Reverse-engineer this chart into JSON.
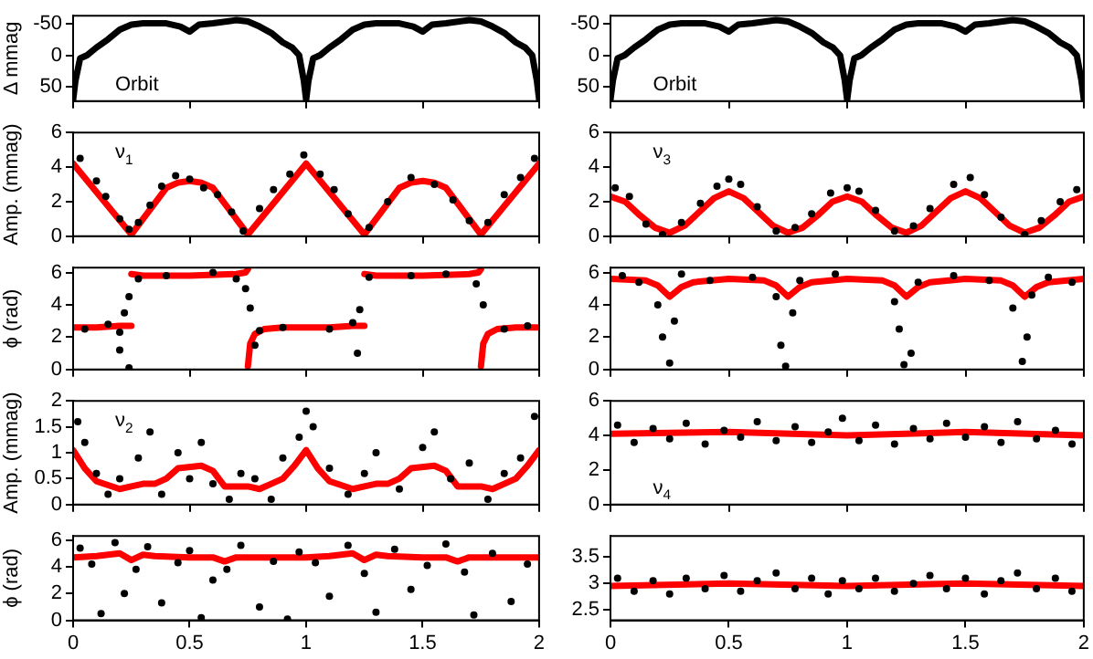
{
  "chart_data": [
    {
      "type": "line",
      "ylabel": "Δ mmag",
      "annotations": [
        "Orbit"
      ],
      "xlim": [
        0,
        2
      ],
      "xticks": [
        0,
        0.5,
        1,
        1.5,
        2
      ],
      "ylim": [
        72,
        -62
      ],
      "yticks": [
        -50,
        0,
        50
      ],
      "tick_labels": "y",
      "series": [
        {
          "color": "#000000",
          "x": [
            0,
            0.01,
            0.03,
            0.06,
            0.1,
            0.15,
            0.2,
            0.25,
            0.3,
            0.4,
            0.46,
            0.5,
            0.54,
            0.6,
            0.7,
            0.75,
            0.8,
            0.85,
            0.9,
            0.94,
            0.97,
            0.99,
            1,
            1.01,
            1.03,
            1.06,
            1.1,
            1.15,
            1.2,
            1.25,
            1.3,
            1.4,
            1.46,
            1.5,
            1.54,
            1.6,
            1.7,
            1.75,
            1.8,
            1.85,
            1.9,
            1.94,
            1.97,
            1.99,
            2
          ],
          "values": [
            70,
            40,
            5,
            0,
            -12,
            -25,
            -40,
            -48,
            -50,
            -50,
            -45,
            -37,
            -48,
            -50,
            -55,
            -53,
            -45,
            -35,
            -20,
            -12,
            0,
            40,
            70,
            40,
            5,
            0,
            -12,
            -25,
            -40,
            -48,
            -50,
            -50,
            -45,
            -37,
            -48,
            -50,
            -55,
            -53,
            -45,
            -35,
            -20,
            -12,
            0,
            40,
            70
          ]
        }
      ]
    },
    {
      "type": "line",
      "annotations": [
        "Orbit"
      ],
      "xlim": [
        0,
        2
      ],
      "xticks": [
        0,
        0.5,
        1,
        1.5,
        2
      ],
      "ylim": [
        72,
        -62
      ],
      "yticks": [
        -50,
        0,
        50
      ],
      "tick_labels": "y",
      "series": [
        {
          "color": "#000000",
          "x": [
            0,
            0.01,
            0.03,
            0.06,
            0.1,
            0.15,
            0.2,
            0.25,
            0.3,
            0.4,
            0.46,
            0.5,
            0.54,
            0.6,
            0.7,
            0.75,
            0.8,
            0.85,
            0.9,
            0.94,
            0.97,
            0.99,
            1,
            1.01,
            1.03,
            1.06,
            1.1,
            1.15,
            1.2,
            1.25,
            1.3,
            1.4,
            1.46,
            1.5,
            1.54,
            1.6,
            1.7,
            1.75,
            1.8,
            1.85,
            1.9,
            1.94,
            1.97,
            1.99,
            2
          ],
          "values": [
            70,
            40,
            5,
            0,
            -12,
            -25,
            -40,
            -48,
            -50,
            -50,
            -45,
            -37,
            -48,
            -50,
            -55,
            -53,
            -45,
            -35,
            -20,
            -12,
            0,
            40,
            70,
            40,
            5,
            0,
            -12,
            -25,
            -40,
            -48,
            -50,
            -50,
            -45,
            -37,
            -48,
            -50,
            -55,
            -53,
            -45,
            -35,
            -20,
            -12,
            0,
            40,
            70
          ]
        }
      ]
    },
    {
      "type": "line",
      "ylabel": "Amp. (mmag)",
      "annotations": [
        "ν$_{1}$"
      ],
      "xlim": [
        0,
        2
      ],
      "xticks": [
        0,
        0.5,
        1,
        1.5,
        2
      ],
      "ylim": [
        0,
        6
      ],
      "yticks": [
        0,
        2,
        4,
        6
      ],
      "tick_labels": "y",
      "series": [
        {
          "type": "scatter",
          "color": "#000000",
          "x": [
            0.03,
            0.1,
            0.14,
            0.2,
            0.24,
            0.28,
            0.33,
            0.38,
            0.44,
            0.5,
            0.56,
            0.62,
            0.68,
            0.73,
            0.8,
            0.86,
            0.93,
            0.99,
            1.06,
            1.12,
            1.18,
            1.27,
            1.35,
            1.45,
            1.55,
            1.63,
            1.7,
            1.78,
            1.85,
            1.92,
            1.98
          ],
          "values": [
            4.5,
            3.2,
            2.3,
            1.0,
            0.4,
            0.8,
            1.8,
            2.9,
            3.5,
            3.3,
            2.8,
            2.4,
            1.4,
            0.3,
            1.6,
            2.7,
            3.6,
            4.7,
            3.6,
            2.7,
            1.3,
            0.5,
            2.0,
            3.4,
            3.0,
            2.1,
            0.9,
            0.8,
            2.4,
            3.4,
            4.5
          ]
        },
        {
          "color": "#ff0000",
          "x": [
            0,
            0.25,
            0.4,
            0.45,
            0.5,
            0.55,
            0.6,
            0.75,
            1,
            1.25,
            1.4,
            1.45,
            1.5,
            1.55,
            1.6,
            1.75,
            2
          ],
          "values": [
            4.2,
            0.1,
            2.8,
            3.1,
            3.2,
            3.1,
            2.8,
            0.1,
            4.2,
            0.1,
            2.8,
            3.1,
            3.2,
            3.1,
            2.8,
            0.1,
            4.2
          ]
        }
      ]
    },
    {
      "type": "line",
      "annotations": [
        "ν$_{3}$"
      ],
      "xlim": [
        0,
        2
      ],
      "xticks": [
        0,
        0.5,
        1,
        1.5,
        2
      ],
      "ylim": [
        0,
        6
      ],
      "yticks": [
        0,
        2,
        4,
        6
      ],
      "tick_labels": "y",
      "series": [
        {
          "type": "scatter",
          "color": "#000000",
          "x": [
            0.02,
            0.08,
            0.15,
            0.22,
            0.3,
            0.38,
            0.45,
            0.5,
            0.55,
            0.62,
            0.7,
            0.78,
            0.85,
            0.93,
            1.0,
            1.05,
            1.12,
            1.2,
            1.28,
            1.35,
            1.45,
            1.52,
            1.58,
            1.65,
            1.75,
            1.82,
            1.9,
            1.97
          ],
          "values": [
            2.8,
            2.3,
            0.7,
            0.1,
            0.8,
            1.9,
            2.9,
            3.3,
            3.0,
            1.7,
            0.3,
            0.5,
            1.3,
            2.5,
            2.8,
            2.6,
            1.5,
            0.3,
            0.6,
            1.6,
            3.0,
            3.4,
            2.4,
            1.1,
            0.1,
            0.9,
            2.0,
            2.7
          ]
        },
        {
          "color": "#ff0000",
          "x": [
            0,
            0.0625,
            0.125,
            0.1875,
            0.25,
            0.3125,
            0.375,
            0.4375,
            0.5,
            0.5625,
            0.625,
            0.6875,
            0.75,
            0.8125,
            0.875,
            0.9375,
            1,
            1.0625,
            1.125,
            1.1875,
            1.25,
            1.3125,
            1.375,
            1.4375,
            1.5,
            1.5625,
            1.625,
            1.6875,
            1.75,
            1.8125,
            1.875,
            1.9375,
            2
          ],
          "values": [
            2.3,
            2.0,
            1.2,
            0.5,
            0.2,
            0.6,
            1.4,
            2.2,
            2.6,
            2.2,
            1.4,
            0.6,
            0.2,
            0.5,
            1.2,
            2.0,
            2.3,
            2.0,
            1.2,
            0.5,
            0.2,
            0.6,
            1.4,
            2.2,
            2.6,
            2.2,
            1.4,
            0.6,
            0.2,
            0.5,
            1.2,
            2.0,
            2.3
          ]
        }
      ]
    },
    {
      "type": "line",
      "ylabel": "ϕ (rad)",
      "xlim": [
        0,
        2
      ],
      "xticks": [
        0,
        0.5,
        1,
        1.5,
        2
      ],
      "ylim": [
        0,
        6.3
      ],
      "yticks": [
        0,
        2,
        4,
        6
      ],
      "tick_labels": "y",
      "series": [
        {
          "type": "scatter",
          "color": "#000000",
          "x": [
            0.05,
            0.15,
            0.2,
            0.22,
            0.24,
            0.2,
            0.24,
            0.28,
            0.4,
            0.6,
            0.7,
            0.74,
            0.76,
            0.78,
            0.8,
            0.9,
            1.1,
            1.2,
            1.23,
            1.22,
            1.27,
            1.45,
            1.6,
            1.73,
            1.76,
            1.85,
            1.95
          ],
          "values": [
            2.5,
            2.8,
            2.3,
            3.5,
            4.5,
            1.2,
            0.1,
            5.6,
            5.8,
            6.0,
            5.6,
            5.0,
            3.8,
            1.5,
            2.4,
            2.6,
            2.5,
            2.9,
            3.7,
            1.0,
            5.7,
            5.8,
            5.9,
            5.3,
            4.0,
            2.5,
            2.7
          ]
        },
        {
          "color": "#ff0000",
          "x": [
            0,
            0.1,
            0.2,
            0.25
          ],
          "values": [
            2.6,
            2.6,
            2.7,
            2.7
          ]
        },
        {
          "color": "#ff0000",
          "x": [
            0.25,
            0.3,
            0.5,
            0.7,
            0.74,
            0.75
          ],
          "values": [
            5.9,
            5.8,
            5.8,
            5.9,
            6.0,
            6.2
          ]
        },
        {
          "color": "#ff0000",
          "x": [
            0.75,
            0.76,
            0.78,
            0.82,
            0.9,
            1,
            1.1,
            1.2,
            1.25
          ],
          "values": [
            0.2,
            1.6,
            2.2,
            2.5,
            2.6,
            2.6,
            2.6,
            2.7,
            2.7
          ]
        },
        {
          "color": "#ff0000",
          "x": [
            1.25,
            1.3,
            1.5,
            1.7,
            1.74,
            1.75
          ],
          "values": [
            5.9,
            5.8,
            5.8,
            5.9,
            6.0,
            6.2
          ]
        },
        {
          "color": "#ff0000",
          "x": [
            1.75,
            1.76,
            1.78,
            1.82,
            1.9,
            2
          ],
          "values": [
            0.2,
            1.6,
            2.2,
            2.5,
            2.6,
            2.6
          ]
        }
      ]
    },
    {
      "type": "line",
      "xlim": [
        0,
        2
      ],
      "xticks": [
        0,
        0.5,
        1,
        1.5,
        2
      ],
      "ylim": [
        0,
        6.3
      ],
      "yticks": [
        0,
        2,
        4,
        6
      ],
      "tick_labels": "y",
      "series": [
        {
          "type": "scatter",
          "color": "#000000",
          "x": [
            0.05,
            0.12,
            0.2,
            0.22,
            0.25,
            0.27,
            0.3,
            0.42,
            0.6,
            0.7,
            0.72,
            0.74,
            0.77,
            0.8,
            0.95,
            1.2,
            1.22,
            1.24,
            1.27,
            1.3,
            1.45,
            1.6,
            1.7,
            1.74,
            1.76,
            1.78,
            1.85,
            1.95
          ],
          "values": [
            5.8,
            5.4,
            4.0,
            2.0,
            0.4,
            3.0,
            5.9,
            5.5,
            5.7,
            4.5,
            1.5,
            0.2,
            3.5,
            5.5,
            5.9,
            4.2,
            2.5,
            0.3,
            1.0,
            5.4,
            5.8,
            5.5,
            3.8,
            0.5,
            2.0,
            4.6,
            5.7,
            5.4
          ]
        },
        {
          "color": "#ff0000",
          "x": [
            0,
            0.15,
            0.2,
            0.25,
            0.3,
            0.35,
            0.5,
            0.65,
            0.7,
            0.75,
            0.8,
            0.85,
            1,
            1.15,
            1.2,
            1.25,
            1.3,
            1.35,
            1.5,
            1.65,
            1.7,
            1.75,
            1.8,
            1.85,
            2
          ],
          "values": [
            5.6,
            5.5,
            5.2,
            4.5,
            5.1,
            5.4,
            5.6,
            5.5,
            5.2,
            4.5,
            5.1,
            5.4,
            5.6,
            5.5,
            5.2,
            4.5,
            5.1,
            5.4,
            5.6,
            5.5,
            5.2,
            4.5,
            5.1,
            5.4,
            5.6
          ]
        }
      ]
    },
    {
      "type": "line",
      "ylabel": "Amp. (mmag)",
      "annotations": [
        "ν$_{2}$"
      ],
      "xlim": [
        0,
        2
      ],
      "xticks": [
        0,
        0.5,
        1,
        1.5,
        2
      ],
      "ylim": [
        0,
        2
      ],
      "yticks": [
        0,
        0.5,
        1,
        1.5,
        2
      ],
      "tick_labels": "y",
      "series": [
        {
          "type": "scatter",
          "color": "#000000",
          "x": [
            0.02,
            0.05,
            0.1,
            0.15,
            0.2,
            0.28,
            0.33,
            0.38,
            0.45,
            0.5,
            0.55,
            0.6,
            0.67,
            0.72,
            0.78,
            0.85,
            0.9,
            0.97,
            1.0,
            1.03,
            1.1,
            1.18,
            1.25,
            1.3,
            1.4,
            1.5,
            1.55,
            1.62,
            1.7,
            1.78,
            1.85,
            1.92,
            1.98
          ],
          "values": [
            1.6,
            1.2,
            0.6,
            0.2,
            0.5,
            0.9,
            1.4,
            0.2,
            1.0,
            0.5,
            1.2,
            0.4,
            0.1,
            0.6,
            0.5,
            0.1,
            0.9,
            1.3,
            1.8,
            1.5,
            0.7,
            0.2,
            0.6,
            1.0,
            0.3,
            1.1,
            1.4,
            0.5,
            0.8,
            0.1,
            0.6,
            0.9,
            1.7
          ]
        },
        {
          "color": "#ff0000",
          "x": [
            0,
            0.05,
            0.1,
            0.2,
            0.25,
            0.3,
            0.35,
            0.4,
            0.45,
            0.55,
            0.6,
            0.65,
            0.7,
            0.75,
            0.8,
            0.85,
            0.9,
            0.95,
            1,
            1.05,
            1.1,
            1.2,
            1.25,
            1.3,
            1.35,
            1.4,
            1.45,
            1.55,
            1.6,
            1.65,
            1.7,
            1.75,
            1.8,
            1.85,
            1.9,
            1.95,
            2
          ],
          "values": [
            1.05,
            0.7,
            0.45,
            0.3,
            0.35,
            0.4,
            0.4,
            0.5,
            0.7,
            0.75,
            0.65,
            0.35,
            0.35,
            0.35,
            0.3,
            0.4,
            0.5,
            0.75,
            1.05,
            0.7,
            0.45,
            0.3,
            0.35,
            0.4,
            0.4,
            0.5,
            0.7,
            0.75,
            0.65,
            0.35,
            0.35,
            0.35,
            0.3,
            0.4,
            0.5,
            0.75,
            1.05
          ]
        }
      ]
    },
    {
      "type": "line",
      "annotations": [
        "ν$_{4}$"
      ],
      "xlim": [
        0,
        2
      ],
      "xticks": [
        0,
        0.5,
        1,
        1.5,
        2
      ],
      "ylim": [
        0,
        6
      ],
      "yticks": [
        0,
        2,
        4,
        6
      ],
      "tick_labels": "y",
      "series": [
        {
          "type": "scatter",
          "color": "#000000",
          "x": [
            0.03,
            0.1,
            0.18,
            0.25,
            0.32,
            0.4,
            0.48,
            0.55,
            0.62,
            0.7,
            0.78,
            0.85,
            0.92,
            0.98,
            1.05,
            1.12,
            1.2,
            1.28,
            1.35,
            1.42,
            1.5,
            1.58,
            1.65,
            1.72,
            1.8,
            1.88,
            1.95
          ],
          "values": [
            4.6,
            3.6,
            4.4,
            3.8,
            4.7,
            3.5,
            4.3,
            3.9,
            4.8,
            3.7,
            4.5,
            3.6,
            4.2,
            5.0,
            3.7,
            4.6,
            3.5,
            4.4,
            3.8,
            4.7,
            3.9,
            4.5,
            3.6,
            4.8,
            3.8,
            4.3,
            3.5
          ]
        },
        {
          "color": "#ff0000",
          "x": [
            0,
            0.5,
            1,
            1.5,
            2
          ],
          "values": [
            4.1,
            4.2,
            4.0,
            4.2,
            4.0
          ]
        }
      ]
    },
    {
      "type": "line",
      "ylabel": "ϕ (rad)",
      "xlim": [
        0,
        2
      ],
      "xticks": [
        0,
        0.5,
        1,
        1.5,
        2
      ],
      "ylim": [
        0,
        6.3
      ],
      "yticks": [
        0,
        2,
        4,
        6
      ],
      "series": [
        {
          "type": "scatter",
          "color": "#000000",
          "x": [
            0.03,
            0.08,
            0.12,
            0.18,
            0.22,
            0.27,
            0.32,
            0.38,
            0.45,
            0.5,
            0.55,
            0.6,
            0.66,
            0.72,
            0.8,
            0.86,
            0.92,
            0.97,
            1.04,
            1.1,
            1.18,
            1.25,
            1.3,
            1.38,
            1.45,
            1.52,
            1.6,
            1.68,
            1.72,
            1.8,
            1.88,
            1.95
          ],
          "values": [
            5.4,
            4.2,
            0.5,
            5.8,
            2.0,
            3.8,
            5.5,
            1.3,
            4.3,
            5.2,
            0.2,
            3.0,
            3.8,
            5.6,
            1.0,
            4.4,
            0.1,
            5.1,
            4.3,
            1.8,
            5.6,
            3.5,
            0.6,
            5.3,
            2.3,
            4.1,
            5.7,
            3.6,
            0.4,
            5.0,
            1.4,
            4.2
          ]
        },
        {
          "color": "#ff0000",
          "x": [
            0,
            0.1,
            0.2,
            0.25,
            0.3,
            0.35,
            0.5,
            0.6,
            0.65,
            0.7,
            0.8,
            1,
            1.1,
            1.2,
            1.25,
            1.3,
            1.35,
            1.5,
            1.6,
            1.65,
            1.7,
            1.8,
            2
          ],
          "values": [
            4.7,
            4.8,
            5.0,
            4.5,
            4.9,
            4.8,
            4.7,
            4.7,
            4.4,
            4.7,
            4.7,
            4.7,
            4.8,
            5.0,
            4.5,
            4.9,
            4.8,
            4.7,
            4.7,
            4.4,
            4.7,
            4.7,
            4.7
          ]
        }
      ]
    },
    {
      "type": "line",
      "xlim": [
        0,
        2
      ],
      "xticks": [
        0,
        0.5,
        1,
        1.5,
        2
      ],
      "ylim": [
        2.3,
        3.9
      ],
      "yticks": [
        2.5,
        3,
        3.5
      ],
      "series": [
        {
          "type": "scatter",
          "color": "#000000",
          "x": [
            0.03,
            0.1,
            0.18,
            0.25,
            0.32,
            0.4,
            0.48,
            0.55,
            0.62,
            0.7,
            0.78,
            0.85,
            0.92,
            0.98,
            1.05,
            1.12,
            1.2,
            1.28,
            1.35,
            1.42,
            1.5,
            1.58,
            1.65,
            1.72,
            1.8,
            1.88,
            1.95
          ],
          "values": [
            3.1,
            2.85,
            3.05,
            2.8,
            3.1,
            2.9,
            3.15,
            2.85,
            3.05,
            3.2,
            2.9,
            3.1,
            2.8,
            3.05,
            2.9,
            3.1,
            2.85,
            3.0,
            3.15,
            2.9,
            3.1,
            2.8,
            3.05,
            3.2,
            2.9,
            3.1,
            2.85
          ]
        },
        {
          "color": "#ff0000",
          "x": [
            0,
            0.5,
            1,
            1.5,
            2
          ],
          "values": [
            2.95,
            3.0,
            2.95,
            3.0,
            2.95
          ]
        }
      ]
    }
  ]
}
